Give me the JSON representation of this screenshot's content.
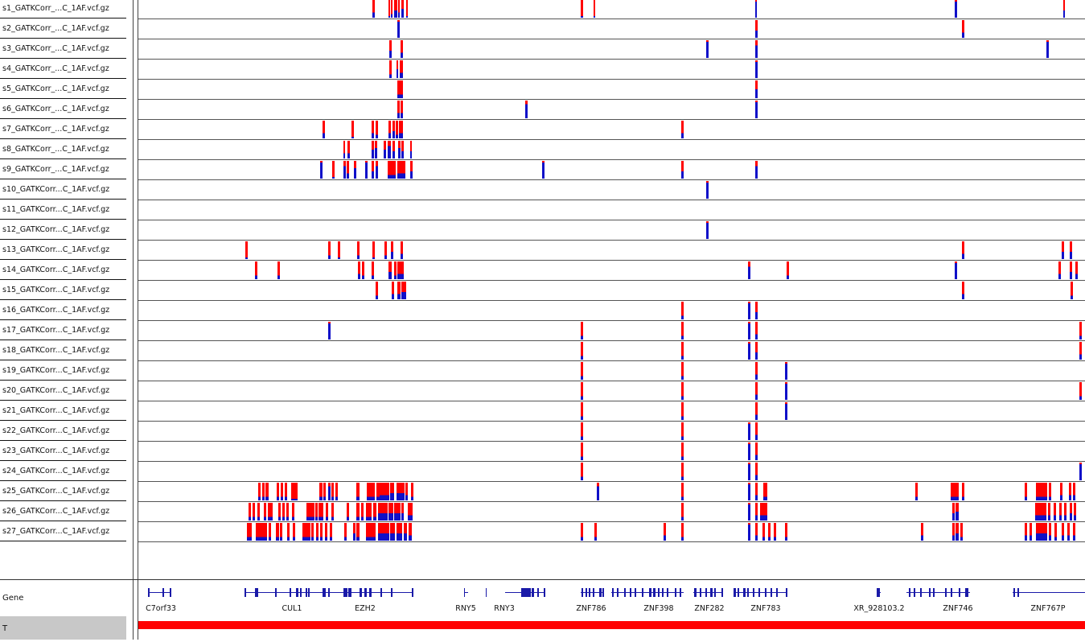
{
  "colors": {
    "het": "#ff0000",
    "homvar": "#1010c8",
    "gene": "#1a1aa8",
    "t_bar": "#ff0000"
  },
  "samples": [
    "s1_GATKCorr_...C_1AF.vcf.gz",
    "s2_GATKCorr_...C_1AF.vcf.gz",
    "s3_GATKCorr_...C_1AF.vcf.gz",
    "s4_GATKCorr_...C_1AF.vcf.gz",
    "s5_GATKCorr_...C_1AF.vcf.gz",
    "s6_GATKCorr_...C_1AF.vcf.gz",
    "s7_GATKCorr_...C_1AF.vcf.gz",
    "s8_GATKCorr_...C_1AF.vcf.gz",
    "s9_GATKCorr_...C_1AF.vcf.gz",
    "s10_GATKCorr...C_1AF.vcf.gz",
    "s11_GATKCorr...C_1AF.vcf.gz",
    "s12_GATKCorr...C_1AF.vcf.gz",
    "s13_GATKCorr...C_1AF.vcf.gz",
    "s14_GATKCorr...C_1AF.vcf.gz",
    "s15_GATKCorr...C_1AF.vcf.gz",
    "s16_GATKCorr...C_1AF.vcf.gz",
    "s17_GATKCorr...C_1AF.vcf.gz",
    "s18_GATKCorr...C_1AF.vcf.gz",
    "s19_GATKCorr...C_1AF.vcf.gz",
    "s20_GATKCorr...C_1AF.vcf.gz",
    "s21_GATKCorr...C_1AF.vcf.gz",
    "s22_GATKCorr...C_1AF.vcf.gz",
    "s23_GATKCorr...C_1AF.vcf.gz",
    "s24_GATKCorr...C_1AF.vcf.gz",
    "s25_GATKCorr...C_1AF.vcf.gz",
    "s26_GATKCorr...C_1AF.vcf.gz",
    "s27_GATKCorr...C_1AF.vcf.gz"
  ],
  "tracks": {
    "gene_label": "Gene",
    "t_label": "T"
  },
  "genes": [
    "C7orf33",
    "CUL1",
    "EZH2",
    "RNY5",
    "RNY3",
    "ZNF786",
    "ZNF398",
    "ZNF282",
    "ZNF783",
    "XR_928103.2",
    "ZNF746",
    "ZNF767P"
  ]
}
